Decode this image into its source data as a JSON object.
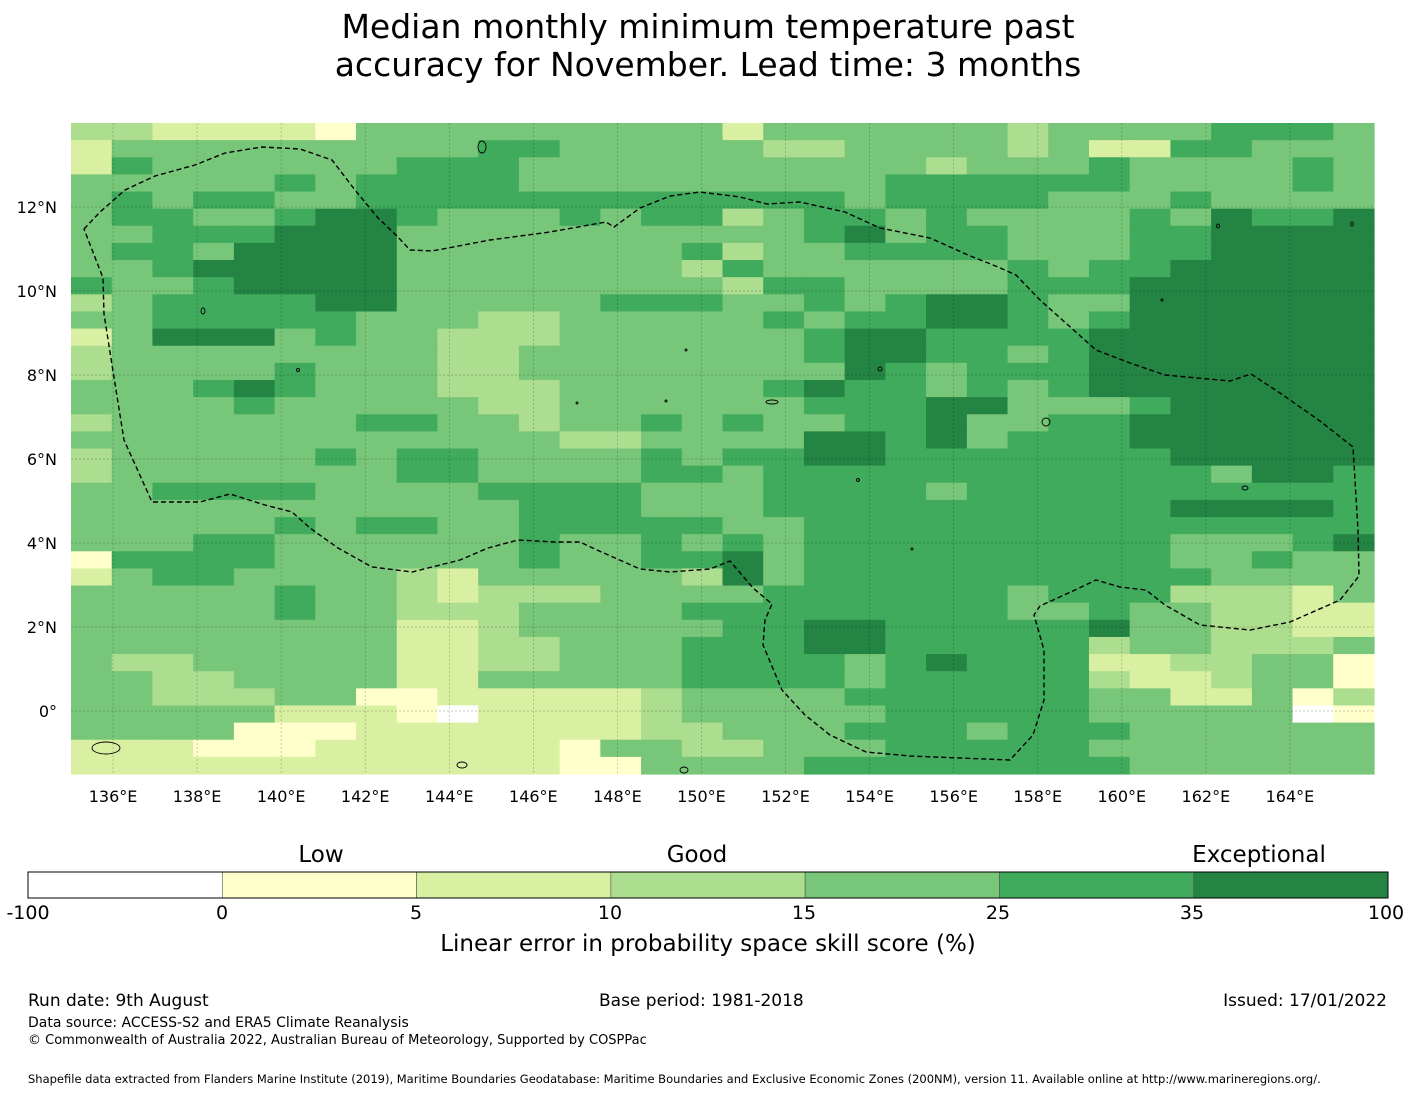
{
  "title": {
    "line1": "Median monthly minimum temperature past",
    "line2": "accuracy for November. Lead time: 3 months"
  },
  "map": {
    "region": "Federated States of Micronesia EEZ",
    "lon_labels": [
      "136°E",
      "138°E",
      "140°E",
      "142°E",
      "144°E",
      "146°E",
      "148°E",
      "150°E",
      "152°E",
      "154°E",
      "156°E",
      "158°E",
      "160°E",
      "162°E",
      "164°E"
    ],
    "lat_labels": [
      "12°N",
      "10°N",
      "8°N",
      "6°N",
      "4°N",
      "2°N",
      "0°"
    ],
    "lon_range": [
      135.0,
      166.0
    ],
    "lat_range": [
      -1.5,
      14.0
    ],
    "colors": [
      "#ffffff",
      "#ffffcc",
      "#d9f0a3",
      "#addd8e",
      "#78c679",
      "#41ab5d",
      "#238443"
    ],
    "grid_rows": [
      "33222214444444442444444344445554",
      "24444444445544444334444342255444",
      "25444444555444444444434445444454",
      "44444545555444444444555555444454",
      "45455445555555555554555544454444",
      "45544566544454553455454444546556",
      "44555666444444444456455444556666",
      "45546666444444453445555444556666",
      "44566666444444435444444545566666",
      "54456666444444443554444555666666",
      "34555566444445554454566544666666",
      "44555554443344444545566545666666",
      "24666454433344444456655556666666",
      "34444444433444444456655456666666",
      "34444544433444444446545556666666",
      "44456544433344444565545456666666",
      "44445444443344444455566444566666",
      "34444445544344545445564455666666",
      "44444444444433444466564555666666",
      "34444454554444545566555555566666",
      "34444444554444554555555555554665",
      "44555544445555444555545555555555",
      "44444444444555444555555555566665",
      "44444545544555554455555555555555",
      "44455444444544545455555555544456",
      "15555444444544556455555555544544",
      "24554444324444436455555555554444",
      "44444544323334444555555455533324",
      "44444544333444455555555445443322",
      "44444444223444445566555556443322",
      "44444444223344455566555553443334",
      "43344444223344455554565552233441",
      "44334444224444455554555553223441",
      "44333441122222344445555554422413",
      "44444222102222344444555554444401",
      "44441112222222334445554555444444",
      "22211122222214433444555554444444",
      "22222222222211444455555555444444"
    ]
  },
  "colorbar": {
    "categories": [
      "Low",
      "Good",
      "Exceptional"
    ],
    "ticks": [
      "-100",
      "0",
      "5",
      "10",
      "15",
      "25",
      "35",
      "100"
    ],
    "label": "Linear error in probability space skill score (%)"
  },
  "footer": {
    "run_date": "Run date: 9th August",
    "base_period": "Base period: 1981-2018",
    "issued": "Issued: 17/01/2022",
    "data_source": "Data source: ACCESS-S2 and ERA5 Climate Reanalysis",
    "copyright": "© Commonwealth of Australia 2022, Australian Bureau of Meteorology, Supported by COSPPac",
    "shapefile": "Shapefile data extracted from Flanders Marine Institute (2019), Maritime Boundaries Geodatabase: Maritime Boundaries and Exclusive Economic Zones (200NM), version 11. Available online at http://www.marineregions.org/."
  }
}
